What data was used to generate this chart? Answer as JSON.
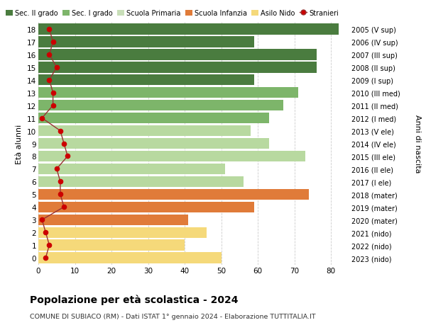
{
  "ages": [
    18,
    17,
    16,
    15,
    14,
    13,
    12,
    11,
    10,
    9,
    8,
    7,
    6,
    5,
    4,
    3,
    2,
    1,
    0
  ],
  "right_labels": [
    "2005 (V sup)",
    "2006 (IV sup)",
    "2007 (III sup)",
    "2008 (II sup)",
    "2009 (I sup)",
    "2010 (III med)",
    "2011 (II med)",
    "2012 (I med)",
    "2013 (V ele)",
    "2014 (IV ele)",
    "2015 (III ele)",
    "2016 (II ele)",
    "2017 (I ele)",
    "2018 (mater)",
    "2019 (mater)",
    "2020 (mater)",
    "2021 (nido)",
    "2022 (nido)",
    "2023 (nido)"
  ],
  "bar_values": [
    82,
    59,
    76,
    76,
    59,
    71,
    67,
    63,
    58,
    63,
    73,
    51,
    56,
    74,
    59,
    41,
    46,
    40,
    50
  ],
  "bar_colors": [
    "#4a7c3f",
    "#4a7c3f",
    "#4a7c3f",
    "#4a7c3f",
    "#4a7c3f",
    "#7db56a",
    "#7db56a",
    "#7db56a",
    "#b8d9a0",
    "#b8d9a0",
    "#b8d9a0",
    "#b8d9a0",
    "#b8d9a0",
    "#e07b39",
    "#e07b39",
    "#e07b39",
    "#f5d97a",
    "#f5d97a",
    "#f5d97a"
  ],
  "stranieri_values": [
    3,
    4,
    3,
    5,
    3,
    4,
    4,
    1,
    6,
    7,
    8,
    5,
    6,
    6,
    7,
    1,
    2,
    3,
    2
  ],
  "title": "Popolazione per età scolastica - 2024",
  "subtitle": "COMUNE DI SUBIACO (RM) - Dati ISTAT 1° gennaio 2024 - Elaborazione TUTTITALIA.IT",
  "ylabel_left": "Età alunni",
  "ylabel_right": "Anni di nascita",
  "xlim": [
    0,
    85
  ],
  "xticks": [
    0,
    10,
    20,
    30,
    40,
    50,
    60,
    70,
    80
  ],
  "background_color": "#ffffff",
  "legend_labels": [
    "Sec. II grado",
    "Sec. I grado",
    "Scuola Primaria",
    "Scuola Infanzia",
    "Asilo Nido",
    "Stranieri"
  ],
  "legend_colors": [
    "#4a7c3f",
    "#7db56a",
    "#c8deb8",
    "#e07b39",
    "#f5d97a",
    "#cc0000"
  ],
  "grid_color": "#cccccc",
  "stranieri_color": "#cc0000",
  "stranieri_line_color": "#993333",
  "bar_height": 0.85
}
